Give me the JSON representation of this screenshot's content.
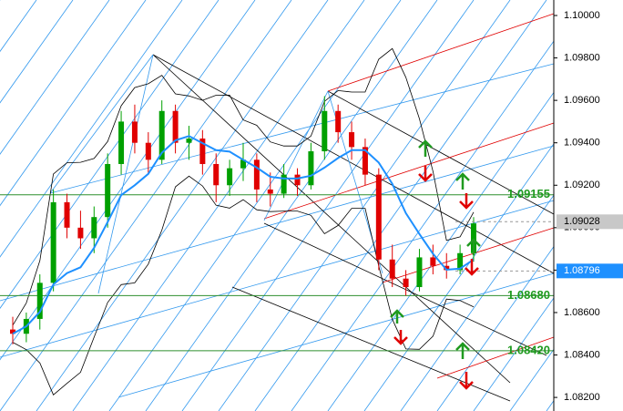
{
  "chart_data": {
    "type": "candlestick",
    "categories": [
      null,
      null,
      null,
      null,
      null,
      null,
      null,
      null,
      null,
      null,
      null,
      null,
      null,
      null,
      null,
      null,
      null,
      null,
      null,
      null,
      null,
      null,
      null,
      null,
      null,
      null,
      null,
      null,
      null,
      null,
      null,
      null,
      null,
      null,
      null
    ],
    "series": [
      {
        "color": "#00a000",
        "open": [
          1.0852,
          1.085,
          1.0857,
          1.0874,
          1.0912,
          1.09,
          1.0895,
          1.0905,
          1.093,
          1.095,
          1.094,
          1.0932,
          1.0955,
          1.094,
          1.0942,
          1.093,
          1.092,
          1.0928,
          1.0932,
          1.0918,
          1.0916,
          1.0925,
          1.092,
          1.0936,
          1.0955,
          1.0945,
          1.0938,
          1.0925,
          1.0885,
          1.0876,
          1.0872,
          1.0886,
          1.0882,
          1.088,
          1.0888
        ],
        "high": [
          1.0858,
          1.086,
          1.0878,
          1.0918,
          1.0916,
          1.0908,
          1.091,
          1.0935,
          1.0955,
          1.0958,
          1.0945,
          1.096,
          1.0958,
          1.0948,
          1.0946,
          1.0935,
          1.0932,
          1.094,
          1.0935,
          1.0926,
          1.093,
          1.0928,
          1.094,
          1.0962,
          1.0958,
          1.095,
          1.0942,
          1.0928,
          1.0892,
          1.088,
          1.089,
          1.0892,
          1.0888,
          1.0892,
          1.0905
        ],
        "low": [
          1.0845,
          1.0846,
          1.0852,
          1.087,
          1.0895,
          1.089,
          1.0888,
          1.09,
          1.0925,
          1.0935,
          1.0925,
          1.093,
          1.0935,
          1.0932,
          1.0925,
          1.0912,
          1.0915,
          1.0922,
          1.0912,
          1.091,
          1.0914,
          1.0915,
          1.0918,
          1.0932,
          1.094,
          1.0932,
          1.092,
          1.088,
          1.0872,
          1.0868,
          1.087,
          1.0878,
          1.0876,
          1.0878,
          1.0884
        ],
        "close": [
          1.085,
          1.0857,
          1.0874,
          1.0912,
          1.09,
          1.0895,
          1.0905,
          1.093,
          1.095,
          1.094,
          1.0932,
          1.0955,
          1.094,
          1.0942,
          1.093,
          1.092,
          1.0928,
          1.0932,
          1.0918,
          1.0916,
          1.0925,
          1.092,
          1.0936,
          1.0955,
          1.0945,
          1.0938,
          1.0925,
          1.0885,
          1.0876,
          1.0872,
          1.0886,
          1.0882,
          1.088,
          1.0888,
          1.0902
        ]
      }
    ],
    "down_color": "#e00000",
    "ylim": [
      1.08136,
      1.10073
    ],
    "yticks": [
      {
        "value": 1.082,
        "label": "1.08200"
      },
      {
        "value": 1.084,
        "label": "1.08400"
      },
      {
        "value": 1.086,
        "label": "1.08600"
      },
      {
        "value": 1.088,
        "label": "1.08800"
      },
      {
        "value": 1.09,
        "label": "1.09000"
      },
      {
        "value": 1.092,
        "label": "1.09200"
      },
      {
        "value": 1.094,
        "label": "1.09400"
      },
      {
        "value": 1.096,
        "label": "1.09600"
      },
      {
        "value": 1.098,
        "label": "1.09800"
      },
      {
        "value": 1.1,
        "label": "1.10000"
      }
    ],
    "levels": [
      1.09155,
      {
        "value": 1.0868,
        "label": "1.08680"
      },
      {
        "value": 1.0842,
        "label": "1.08420"
      }
    ],
    "level_color": "#2f8f2f",
    "price_markers": [
      {
        "value": 1.09028,
        "color": "#c8c8c8"
      },
      {
        "value": 1.08796,
        "color": "#1e90ff"
      }
    ]
  }
}
